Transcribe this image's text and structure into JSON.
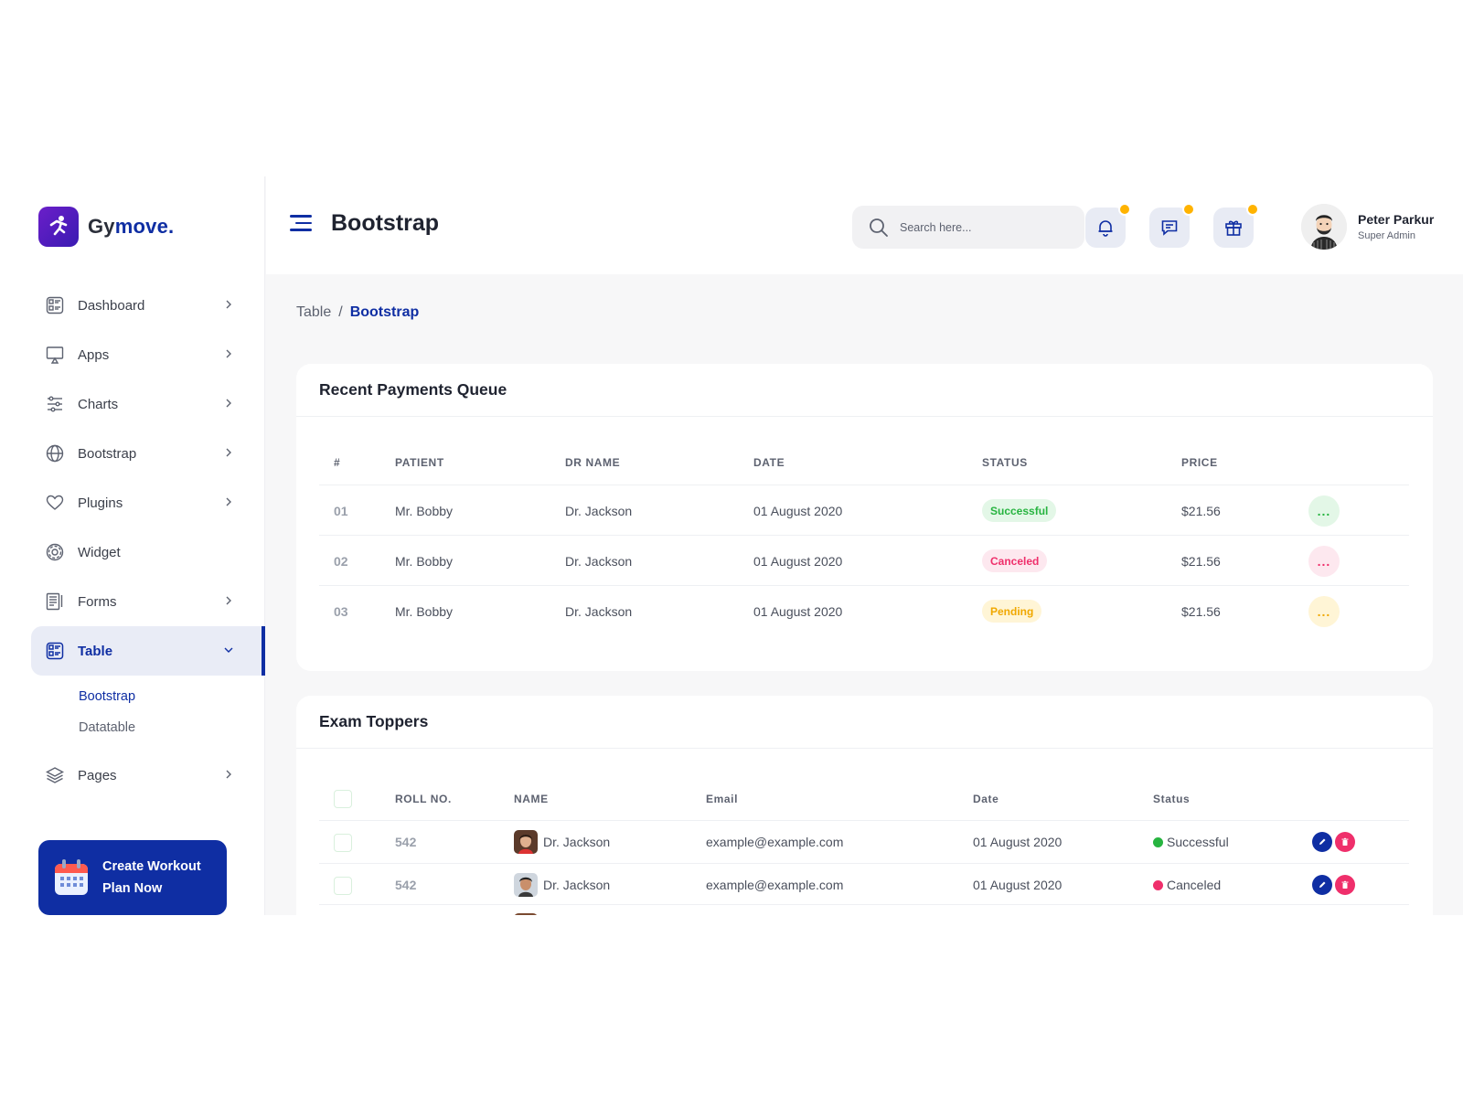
{
  "brand": {
    "name_main": "Gy",
    "name_accent": "move."
  },
  "sidebar": {
    "items": [
      {
        "label": "Dashboard",
        "icon": "dashboard-icon"
      },
      {
        "label": "Apps",
        "icon": "monitor-icon"
      },
      {
        "label": "Charts",
        "icon": "sliders-icon"
      },
      {
        "label": "Bootstrap",
        "icon": "globe-icon"
      },
      {
        "label": "Plugins",
        "icon": "heart-icon"
      },
      {
        "label": "Widget",
        "icon": "gear-icon"
      },
      {
        "label": "Forms",
        "icon": "forms-icon"
      },
      {
        "label": "Table",
        "icon": "table-icon"
      },
      {
        "label": "Pages",
        "icon": "layers-icon"
      }
    ],
    "submenu": [
      "Bootstrap",
      "Datatable"
    ],
    "cta": {
      "label": "Create Workout Plan Now",
      "icon": "calendar-icon"
    }
  },
  "header": {
    "title": "Bootstrap",
    "search_placeholder": "Search here...",
    "icons": [
      "bell-icon",
      "chat-icon",
      "gift-icon"
    ],
    "user_name": "Peter Parkur",
    "user_role": "Super Admin"
  },
  "breadcrumb": {
    "parent": "Table",
    "separator": "/",
    "current": "Bootstrap"
  },
  "payments": {
    "title": "Recent Payments Queue",
    "columns": [
      "#",
      "PATIENT",
      "DR NAME",
      "DATE",
      "STATUS",
      "PRICE"
    ],
    "rows": [
      {
        "num": "01",
        "patient": "Mr. Bobby",
        "dr": "Dr. Jackson",
        "date": "01 August 2020",
        "status": "Successful",
        "price": "$21.56"
      },
      {
        "num": "02",
        "patient": "Mr. Bobby",
        "dr": "Dr. Jackson",
        "date": "01 August 2020",
        "status": "Canceled",
        "price": "$21.56"
      },
      {
        "num": "03",
        "patient": "Mr. Bobby",
        "dr": "Dr. Jackson",
        "date": "01 August 2020",
        "status": "Pending",
        "price": "$21.56"
      }
    ],
    "more_label": "..."
  },
  "toppers": {
    "title": "Exam Toppers",
    "columns": [
      "ROLL NO.",
      "NAME",
      "Email",
      "Date",
      "Status"
    ],
    "rows": [
      {
        "roll": "542",
        "name": "Dr. Jackson",
        "email": "example@example.com",
        "date": "01 August 2020",
        "status": "Successful"
      },
      {
        "roll": "542",
        "name": "Dr. Jackson",
        "email": "example@example.com",
        "date": "01 August 2020",
        "status": "Canceled"
      }
    ]
  },
  "colors": {
    "primary": "#0f2ea3",
    "success": "#27b440",
    "danger": "#ef2f6b",
    "warning": "#f0a800",
    "notification_dot": "#ffb300"
  }
}
